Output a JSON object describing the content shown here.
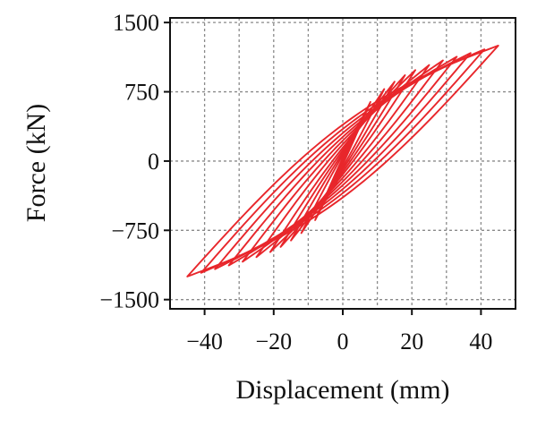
{
  "chart_data": {
    "type": "line",
    "title": "",
    "xlabel": "Displacement (mm)",
    "ylabel": "Force (kN)",
    "xlim": [
      -50,
      50
    ],
    "ylim": [
      -1600,
      1550
    ],
    "xticks": [
      -40,
      -20,
      0,
      20,
      40
    ],
    "yticks": [
      1500,
      750,
      0,
      -750,
      -1500
    ],
    "xtick_labels": [
      "−40",
      "−20",
      "0",
      "20",
      "40"
    ],
    "ytick_labels": [
      "1500",
      "750",
      "0",
      "−750",
      "−1500"
    ],
    "grid": true,
    "legend": "none",
    "series_color": "#e8262b",
    "series": [
      {
        "values": [
          [
            0,
            0
          ],
          [
            2,
            260
          ],
          [
            -2,
            -260
          ],
          [
            0,
            0
          ]
        ]
      },
      {
        "values": [
          [
            0,
            0
          ],
          [
            5,
            430
          ],
          [
            -5,
            -430
          ],
          [
            0,
            0
          ]
        ]
      },
      {
        "values": [
          [
            0,
            0
          ],
          [
            8,
            640
          ],
          [
            -8,
            -640
          ],
          [
            0,
            0
          ]
        ]
      },
      {
        "values": [
          [
            0,
            0
          ],
          [
            12,
            780
          ],
          [
            -12,
            -780
          ],
          [
            0,
            0
          ]
        ]
      },
      {
        "values": [
          [
            0,
            0
          ],
          [
            15,
            860
          ],
          [
            -15,
            -860
          ],
          [
            0,
            0
          ]
        ]
      },
      {
        "values": [
          [
            0,
            0
          ],
          [
            18,
            930
          ],
          [
            -18,
            -930
          ],
          [
            0,
            0
          ]
        ]
      },
      {
        "values": [
          [
            0,
            0
          ],
          [
            21,
            985
          ],
          [
            -21,
            -985
          ],
          [
            0,
            0
          ]
        ]
      },
      {
        "values": [
          [
            0,
            0
          ],
          [
            25,
            1040
          ],
          [
            -25,
            -1040
          ],
          [
            0,
            0
          ]
        ]
      },
      {
        "values": [
          [
            0,
            0
          ],
          [
            29,
            1090
          ],
          [
            -29,
            -1090
          ],
          [
            0,
            0
          ]
        ]
      },
      {
        "values": [
          [
            0,
            0
          ],
          [
            33,
            1130
          ],
          [
            -33,
            -1130
          ],
          [
            0,
            0
          ]
        ]
      },
      {
        "values": [
          [
            0,
            0
          ],
          [
            37,
            1170
          ],
          [
            -37,
            -1170
          ],
          [
            0,
            0
          ]
        ]
      },
      {
        "values": [
          [
            0,
            0
          ],
          [
            41,
            1210
          ],
          [
            -41,
            -1210
          ],
          [
            0,
            0
          ]
        ]
      },
      {
        "values": [
          [
            0,
            0
          ],
          [
            45,
            1250
          ],
          [
            -45,
            -1250
          ],
          [
            0,
            0
          ]
        ]
      }
    ]
  }
}
